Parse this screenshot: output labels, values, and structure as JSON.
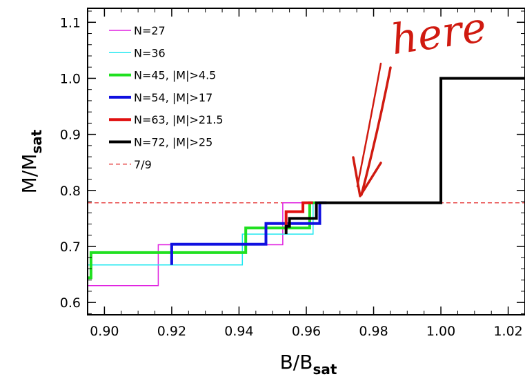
{
  "chart_data": {
    "type": "line",
    "xlabel_main": "B/B",
    "xlabel_sub": "sat",
    "ylabel_main": "M/M",
    "ylabel_sub": "sat",
    "xlim": [
      0.895,
      1.025
    ],
    "ylim": [
      0.578,
      1.125
    ],
    "x_ticks": [
      0.9,
      0.92,
      0.94,
      0.96,
      0.98,
      1.0,
      1.02
    ],
    "x_tick_labels": [
      "0.90",
      "0.92",
      "0.94",
      "0.96",
      "0.98",
      "1.00",
      "1.02"
    ],
    "y_ticks": [
      0.6,
      0.7,
      0.8,
      0.9,
      1.0,
      1.1
    ],
    "y_tick_labels": [
      "0.6",
      "0.7",
      "0.8",
      "0.9",
      "1.0",
      "1.1"
    ],
    "grid": false,
    "legend_position": "top-left",
    "series": [
      {
        "name": "N=27",
        "color": "#e020e0",
        "width": 1.5,
        "x": [
          0.895,
          0.916,
          0.916,
          0.953,
          0.953,
          0.962,
          0.962
        ],
        "y": [
          0.63,
          0.63,
          0.703,
          0.703,
          0.778,
          0.778,
          0.778
        ]
      },
      {
        "name": "N=36",
        "color": "#20e8f0",
        "width": 1.5,
        "x": [
          0.895,
          0.941,
          0.941,
          0.962,
          0.962
        ],
        "y": [
          0.667,
          0.667,
          0.722,
          0.722,
          0.778
        ]
      },
      {
        "name": "N=45, |M|>4.5",
        "color": "#20e020",
        "width": 4,
        "x": [
          0.895,
          0.896,
          0.896,
          0.942,
          0.942,
          0.961,
          0.961,
          0.963
        ],
        "y": [
          0.644,
          0.644,
          0.689,
          0.689,
          0.733,
          0.733,
          0.778,
          0.778
        ]
      },
      {
        "name": "N=54, |M|>17",
        "color": "#1010e0",
        "width": 4,
        "x": [
          0.92,
          0.92,
          0.948,
          0.948,
          0.964,
          0.964,
          0.966
        ],
        "y": [
          0.667,
          0.704,
          0.704,
          0.741,
          0.741,
          0.778,
          0.778
        ]
      },
      {
        "name": "N=63, |M|>21.5",
        "color": "#e01010",
        "width": 4,
        "x": [
          0.954,
          0.954,
          0.959,
          0.959,
          0.962
        ],
        "y": [
          0.73,
          0.762,
          0.762,
          0.778,
          0.778
        ]
      },
      {
        "name": "N=72, |M|>25",
        "color": "#000000",
        "width": 4,
        "x": [
          0.954,
          0.954,
          0.955,
          0.955,
          0.963,
          0.963,
          1.0,
          1.0,
          1.025
        ],
        "y": [
          0.722,
          0.736,
          0.736,
          0.75,
          0.75,
          0.778,
          0.778,
          1.0,
          1.0
        ]
      }
    ],
    "reference_lines": [
      {
        "name": "7/9",
        "y": 0.7778,
        "color": "#e01010",
        "dashed": true
      }
    ],
    "annotation": {
      "text": "here",
      "color": "#d01a10",
      "points_to": {
        "x": 0.9755,
        "y": 0.778
      }
    }
  }
}
